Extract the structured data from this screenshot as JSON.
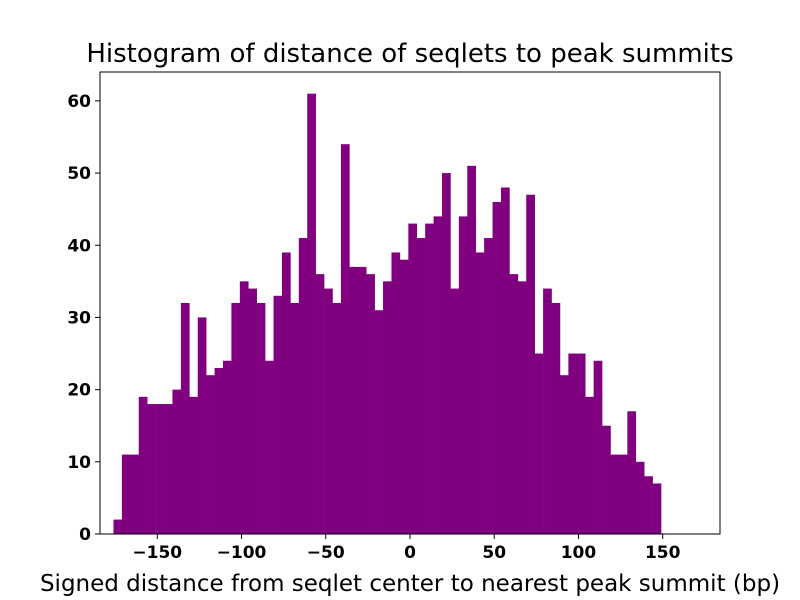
{
  "chart_data": {
    "type": "bar",
    "title": "Histogram of distance of seqlets to peak summits",
    "xlabel": "Signed distance from seqlet center to nearest peak summit (bp)",
    "ylabel": "",
    "bar_color": "#800080",
    "grid": false,
    "legend": "none",
    "xlim": [
      -184,
      184
    ],
    "ylim": [
      0,
      64
    ],
    "bin_start": -176,
    "bin_width": 5,
    "values": [
      2,
      11,
      11,
      19,
      18,
      18,
      18,
      20,
      32,
      19,
      30,
      22,
      23,
      24,
      32,
      35,
      34,
      32,
      24,
      33,
      39,
      32,
      41,
      61,
      36,
      34,
      32,
      54,
      37,
      37,
      36,
      31,
      35,
      39,
      38,
      43,
      41,
      43,
      44,
      50,
      34,
      44,
      51,
      39,
      41,
      46,
      48,
      36,
      35,
      47,
      25,
      34,
      32,
      22,
      25,
      25,
      19,
      24,
      15,
      11,
      11,
      17,
      10,
      8,
      7
    ],
    "x_ticks": [
      -150,
      -100,
      -50,
      0,
      50,
      100,
      150
    ],
    "x_tick_labels": [
      "−150",
      "−100",
      "−50",
      "0",
      "50",
      "100",
      "150"
    ],
    "y_ticks": [
      0,
      10,
      20,
      30,
      40,
      50,
      60
    ],
    "y_tick_labels": [
      "0",
      "10",
      "20",
      "30",
      "40",
      "50",
      "60"
    ]
  }
}
